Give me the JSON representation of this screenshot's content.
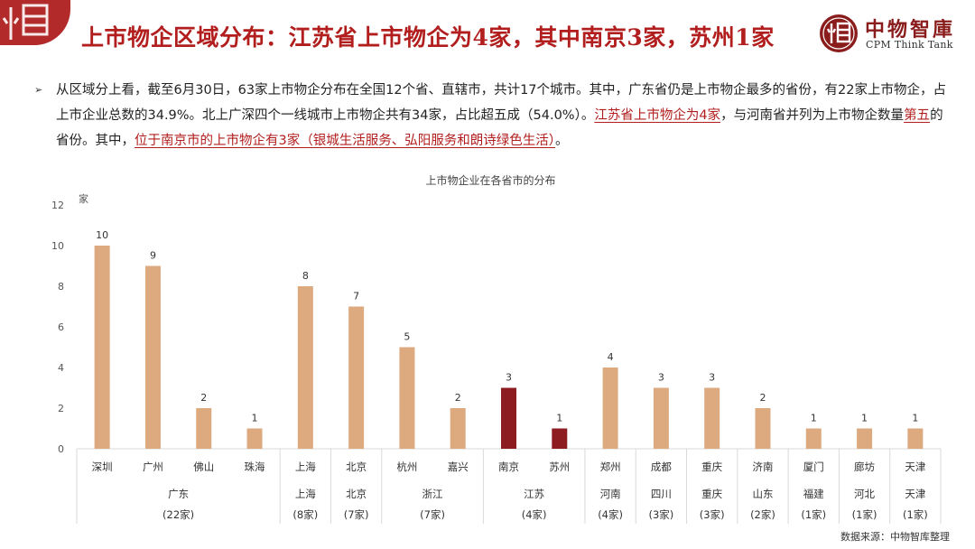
{
  "header": {
    "title": "上市物企区域分布：江苏省上市物企为4家，其中南京3家，苏州1家",
    "brand_name": "中物智庫",
    "brand_en": "CPM Think Tank"
  },
  "summary": {
    "bullet": "➢",
    "p1": "从区域分上看，截至6月30日，63家上市物企分布在全国12个省、直辖市，共计17个城市。其中，广东省仍是上市物企最多的省份，有22家上市物企，占上市企业总数的34.9%。北上广深四个一线城市上市物企共有34家，占比超五成（54.0%）。",
    "h1": "江苏省上市物企为4家",
    "p2": "，与河南省并列为上市物企数量",
    "h2": "第五",
    "p3": "的省份。其中，",
    "h3": "位于南京市的上市物企有3家（银城生活服务、弘阳服务和朗诗绿色生活）",
    "p4": "。"
  },
  "chart_data": {
    "type": "bar",
    "title": "上市物企业在各省市的分布",
    "ylabel": "家",
    "ylim": [
      0,
      12
    ],
    "yticks": [
      0,
      2,
      4,
      6,
      8,
      10,
      12
    ],
    "grid": false,
    "categories": [
      "深圳",
      "广州",
      "佛山",
      "珠海",
      "上海",
      "北京",
      "杭州",
      "嘉兴",
      "南京",
      "苏州",
      "郑州",
      "成都",
      "重庆",
      "济南",
      "厦门",
      "廊坊",
      "天津"
    ],
    "values": [
      10,
      9,
      2,
      1,
      8,
      7,
      5,
      2,
      3,
      1,
      4,
      3,
      3,
      2,
      1,
      1,
      1
    ],
    "highlight": [
      "南京",
      "苏州"
    ],
    "colors": {
      "bar": "#DDAA80",
      "highlight": "#8C1C20",
      "axis": "#d9d9d9"
    },
    "groups": [
      {
        "name": "广东",
        "count": "(22家)",
        "span": [
          0,
          3
        ]
      },
      {
        "name": "上海",
        "count": "(8家)",
        "span": [
          4,
          4
        ]
      },
      {
        "name": "北京",
        "count": "(7家)",
        "span": [
          5,
          5
        ]
      },
      {
        "name": "浙江",
        "count": "(7家)",
        "span": [
          6,
          7
        ]
      },
      {
        "name": "江苏",
        "count": "(4家)",
        "span": [
          8,
          9
        ]
      },
      {
        "name": "河南",
        "count": "(4家)",
        "span": [
          10,
          10
        ]
      },
      {
        "name": "四川",
        "count": "(3家)",
        "span": [
          11,
          11
        ]
      },
      {
        "name": "重庆",
        "count": "(3家)",
        "span": [
          12,
          12
        ]
      },
      {
        "name": "山东",
        "count": "(2家)",
        "span": [
          13,
          13
        ]
      },
      {
        "name": "福建",
        "count": "(1家)",
        "span": [
          14,
          14
        ]
      },
      {
        "name": "河北",
        "count": "(1家)",
        "span": [
          15,
          15
        ]
      },
      {
        "name": "天津",
        "count": "(1家)",
        "span": [
          16,
          16
        ]
      }
    ]
  },
  "footer": {
    "source": "数据来源：中物智库整理"
  }
}
